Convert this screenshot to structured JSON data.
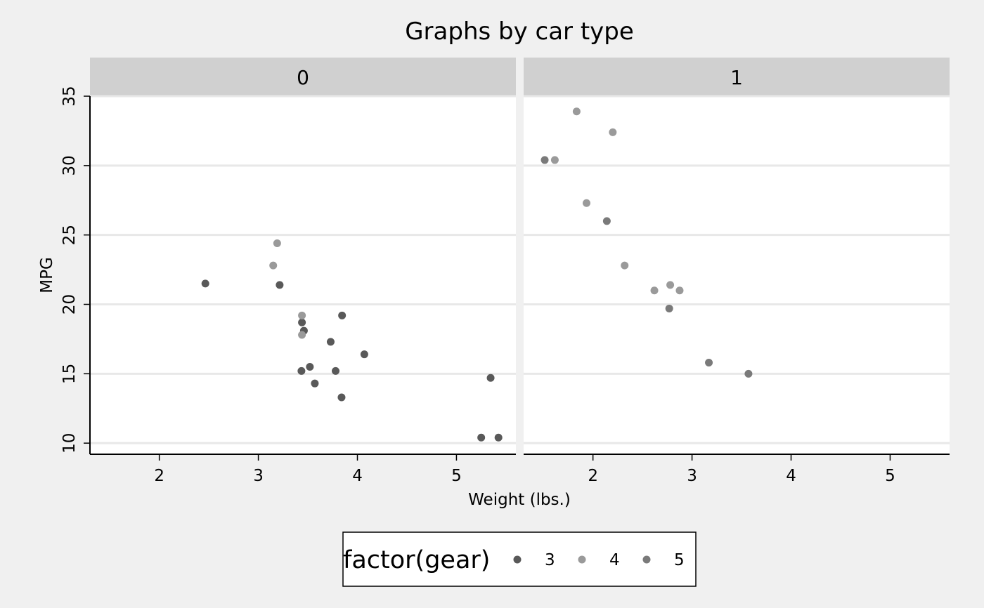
{
  "chart_data": {
    "type": "scatter",
    "title": "Graphs by car type",
    "xlabel": "Weight (lbs.)",
    "ylabel": "MPG",
    "xlim": [
      1.3,
      5.6
    ],
    "ylim": [
      9.2,
      35.0
    ],
    "x_ticks": [
      2,
      3,
      4,
      5
    ],
    "y_ticks": [
      10,
      15,
      20,
      25,
      30,
      35
    ],
    "grid": "horizontal",
    "legend": {
      "title": "factor(gear)",
      "placement": "bottom",
      "entries": [
        {
          "label": "3",
          "color": "#595959"
        },
        {
          "label": "4",
          "color": "#9a9a9a"
        },
        {
          "label": "5",
          "color": "#7a7a7a"
        }
      ]
    },
    "panels": [
      {
        "label": "0",
        "points": [
          {
            "x": 2.465,
            "y": 21.5,
            "gear": "3"
          },
          {
            "x": 3.215,
            "y": 21.4,
            "gear": "3"
          },
          {
            "x": 3.44,
            "y": 18.7,
            "gear": "3"
          },
          {
            "x": 3.46,
            "y": 18.1,
            "gear": "3"
          },
          {
            "x": 3.57,
            "y": 14.3,
            "gear": "3"
          },
          {
            "x": 4.07,
            "y": 16.4,
            "gear": "3"
          },
          {
            "x": 3.73,
            "y": 17.3,
            "gear": "3"
          },
          {
            "x": 3.78,
            "y": 15.2,
            "gear": "3"
          },
          {
            "x": 5.25,
            "y": 10.4,
            "gear": "3"
          },
          {
            "x": 5.424,
            "y": 10.4,
            "gear": "3"
          },
          {
            "x": 5.345,
            "y": 14.7,
            "gear": "3"
          },
          {
            "x": 3.52,
            "y": 15.5,
            "gear": "3"
          },
          {
            "x": 3.435,
            "y": 15.2,
            "gear": "3"
          },
          {
            "x": 3.84,
            "y": 13.3,
            "gear": "3"
          },
          {
            "x": 3.845,
            "y": 19.2,
            "gear": "3"
          },
          {
            "x": 3.19,
            "y": 24.4,
            "gear": "4"
          },
          {
            "x": 3.15,
            "y": 22.8,
            "gear": "4"
          },
          {
            "x": 3.44,
            "y": 19.2,
            "gear": "4"
          },
          {
            "x": 3.44,
            "y": 17.8,
            "gear": "4"
          }
        ]
      },
      {
        "label": "1",
        "points": [
          {
            "x": 2.62,
            "y": 21.0,
            "gear": "4"
          },
          {
            "x": 2.875,
            "y": 21.0,
            "gear": "4"
          },
          {
            "x": 2.32,
            "y": 22.8,
            "gear": "4"
          },
          {
            "x": 2.2,
            "y": 32.4,
            "gear": "4"
          },
          {
            "x": 1.615,
            "y": 30.4,
            "gear": "4"
          },
          {
            "x": 1.835,
            "y": 33.9,
            "gear": "4"
          },
          {
            "x": 1.935,
            "y": 27.3,
            "gear": "4"
          },
          {
            "x": 2.78,
            "y": 21.4,
            "gear": "4"
          },
          {
            "x": 2.14,
            "y": 26.0,
            "gear": "5"
          },
          {
            "x": 1.513,
            "y": 30.4,
            "gear": "5"
          },
          {
            "x": 3.17,
            "y": 15.8,
            "gear": "5"
          },
          {
            "x": 2.77,
            "y": 19.7,
            "gear": "5"
          },
          {
            "x": 3.57,
            "y": 15.0,
            "gear": "5"
          }
        ]
      }
    ]
  }
}
